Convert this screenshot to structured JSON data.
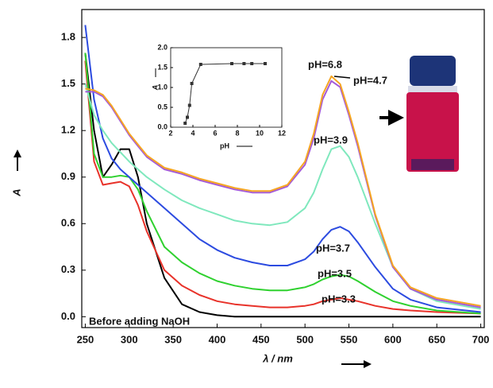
{
  "chart_data": [
    {
      "type": "line",
      "xlabel": "λ / nm",
      "ylabel": "A",
      "xlim": [
        246,
        704
      ],
      "ylim": [
        -0.07,
        1.98
      ],
      "xticks": [
        250,
        300,
        350,
        400,
        450,
        500,
        550,
        600,
        650,
        700
      ],
      "yticks": [
        {
          "value": 0,
          "label": "0.0"
        },
        0.3,
        0.6,
        0.9,
        1.2,
        1.5,
        1.8
      ],
      "x": [
        250,
        260,
        270,
        280,
        290,
        300,
        310,
        320,
        340,
        360,
        380,
        400,
        420,
        440,
        460,
        480,
        500,
        510,
        520,
        530,
        540,
        550,
        560,
        580,
        600,
        620,
        650,
        700
      ],
      "series": [
        {
          "name": "Before adding NaOH",
          "color": "#000000",
          "values": [
            1.7,
            1.2,
            0.9,
            0.98,
            1.08,
            1.08,
            0.9,
            0.6,
            0.25,
            0.08,
            0.03,
            0.01,
            0.0,
            0.0,
            0.0,
            0.0,
            0.0,
            0.0,
            0.0,
            0.0,
            0.0,
            0.0,
            0.0,
            0.0,
            0.0,
            0.0,
            0.0,
            0.0
          ]
        },
        {
          "name": "pH=3.3",
          "color": "#e8322a",
          "values": [
            1.65,
            1.0,
            0.85,
            0.86,
            0.87,
            0.84,
            0.72,
            0.55,
            0.3,
            0.2,
            0.14,
            0.1,
            0.08,
            0.07,
            0.06,
            0.06,
            0.07,
            0.08,
            0.1,
            0.11,
            0.12,
            0.11,
            0.1,
            0.07,
            0.05,
            0.04,
            0.03,
            0.02
          ]
        },
        {
          "name": "pH=3.5",
          "color": "#2fd12f",
          "values": [
            1.7,
            1.05,
            0.9,
            0.9,
            0.91,
            0.9,
            0.82,
            0.68,
            0.45,
            0.35,
            0.28,
            0.23,
            0.2,
            0.18,
            0.17,
            0.17,
            0.19,
            0.21,
            0.24,
            0.26,
            0.27,
            0.26,
            0.23,
            0.16,
            0.1,
            0.07,
            0.04,
            0.02
          ]
        },
        {
          "name": "pH=3.7",
          "color": "#2c4be0",
          "values": [
            1.88,
            1.4,
            1.15,
            1.02,
            0.95,
            0.9,
            0.85,
            0.8,
            0.7,
            0.6,
            0.5,
            0.43,
            0.38,
            0.35,
            0.33,
            0.33,
            0.37,
            0.42,
            0.5,
            0.56,
            0.58,
            0.55,
            0.48,
            0.32,
            0.18,
            0.11,
            0.06,
            0.03
          ]
        },
        {
          "name": "pH=3.9",
          "color": "#7fe8bd",
          "values": [
            1.5,
            1.3,
            1.2,
            1.12,
            1.06,
            1.0,
            0.95,
            0.9,
            0.82,
            0.75,
            0.7,
            0.66,
            0.62,
            0.6,
            0.59,
            0.61,
            0.7,
            0.8,
            0.95,
            1.08,
            1.1,
            1.03,
            0.9,
            0.6,
            0.32,
            0.18,
            0.1,
            0.05
          ]
        },
        {
          "name": "pH=4.7",
          "color": "#a45ad8",
          "values": [
            1.45,
            1.45,
            1.42,
            1.35,
            1.26,
            1.17,
            1.1,
            1.03,
            0.95,
            0.92,
            0.88,
            0.85,
            0.82,
            0.8,
            0.8,
            0.84,
            0.98,
            1.15,
            1.4,
            1.52,
            1.48,
            1.3,
            1.1,
            0.65,
            0.32,
            0.18,
            0.11,
            0.06
          ]
        },
        {
          "name": "pH=6.8",
          "color": "#f5a623",
          "values": [
            1.47,
            1.46,
            1.43,
            1.36,
            1.27,
            1.18,
            1.11,
            1.04,
            0.96,
            0.93,
            0.89,
            0.86,
            0.83,
            0.81,
            0.81,
            0.85,
            1.0,
            1.18,
            1.43,
            1.55,
            1.5,
            1.32,
            1.12,
            0.66,
            0.33,
            0.19,
            0.12,
            0.07
          ]
        }
      ]
    },
    {
      "type": "line",
      "xlabel": "pH",
      "ylabel": "A",
      "color": "#333333",
      "markers": true,
      "xlim": [
        2,
        12
      ],
      "ylim": [
        0,
        2.0
      ],
      "xticks": [
        2,
        4,
        6,
        8,
        10,
        12
      ],
      "yticks": [
        {
          "value": 0,
          "label": "0.0"
        },
        0.5,
        {
          "value": 1,
          "label": "1.0"
        },
        1.5,
        {
          "value": 2,
          "label": "2.0"
        }
      ],
      "x": [
        3.3,
        3.5,
        3.7,
        3.9,
        4.7,
        7.5,
        8.6,
        9.3,
        10.5
      ],
      "values": [
        0.1,
        0.25,
        0.55,
        1.1,
        1.58,
        1.6,
        1.6,
        1.6,
        1.6
      ]
    }
  ]
}
